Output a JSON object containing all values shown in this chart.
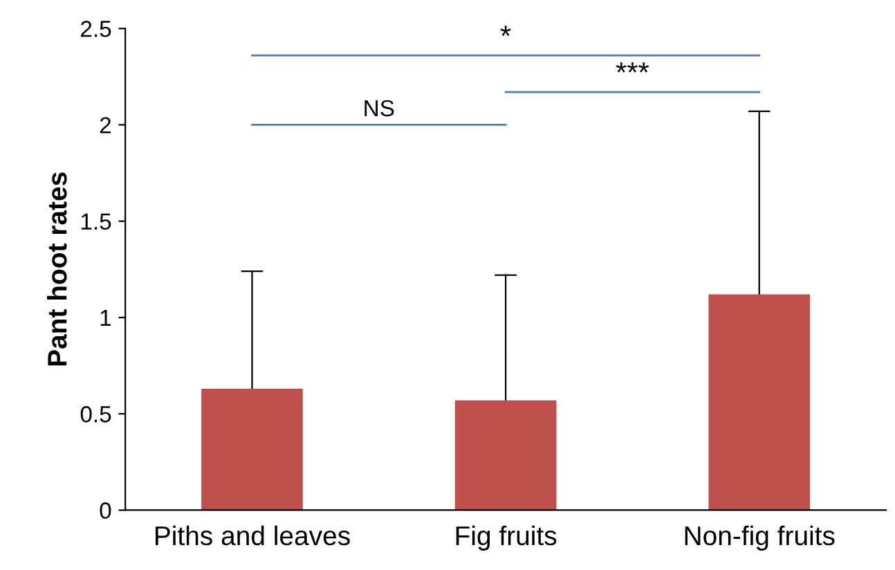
{
  "chart_data": {
    "type": "bar",
    "ylabel": "Pant hoot rates",
    "categories": [
      "Piths and leaves",
      "Fig fruits",
      "Non-fig fruits"
    ],
    "values": [
      0.63,
      0.57,
      1.12
    ],
    "errors": [
      [
        0.63,
        1.24
      ],
      [
        0.57,
        1.22
      ],
      [
        1.12,
        2.07
      ]
    ],
    "color": "#c0504d",
    "ylim": [
      0,
      2.5
    ],
    "yticks": [
      0,
      0.5,
      1,
      1.5,
      2,
      2.5
    ],
    "annotations": [
      "NS",
      "*",
      "***"
    ],
    "grid": false
  }
}
